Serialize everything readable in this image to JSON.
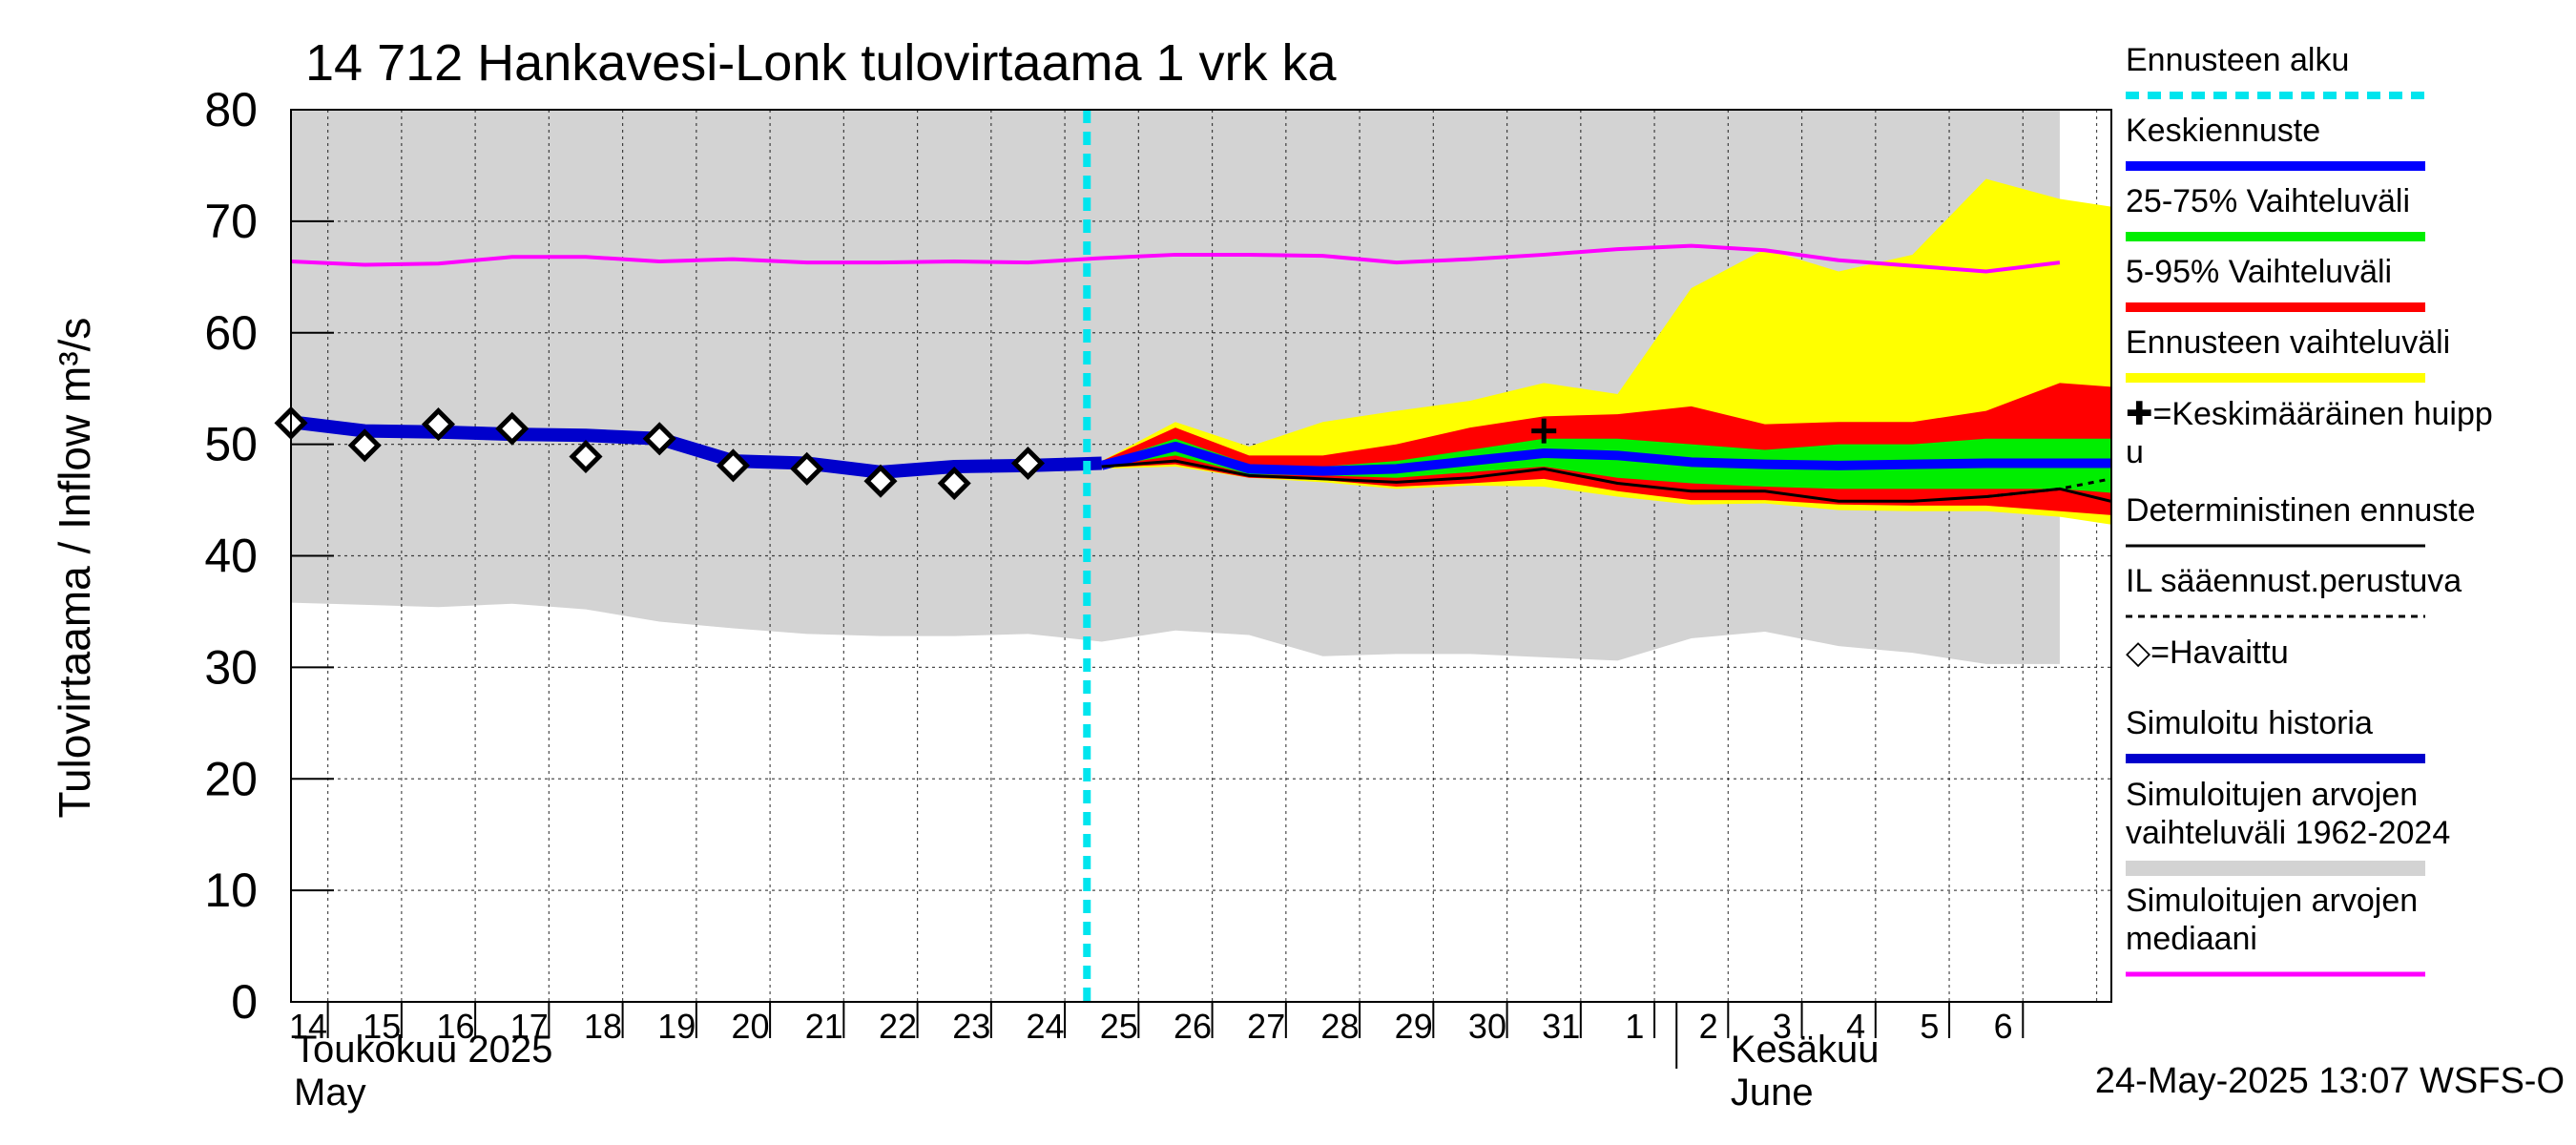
{
  "chart_data": {
    "type": "area",
    "title": "14 712 Hankavesi-Lonk tulovirtaama 1 vrk ka",
    "ylabel": "Tulovirtaama / Inflow    m³/s",
    "ylim": [
      0,
      80
    ],
    "yticks": [
      0,
      10,
      20,
      30,
      40,
      50,
      60,
      70,
      80
    ],
    "grid": true,
    "legend_position": "right",
    "x_day_labels": [
      "14",
      "15",
      "16",
      "17",
      "18",
      "19",
      "20",
      "21",
      "22",
      "23",
      "24",
      "25",
      "26",
      "27",
      "28",
      "29",
      "30",
      "31",
      "1",
      "2",
      "3",
      "4",
      "5",
      "6"
    ],
    "month_labels": {
      "may_fi": "Toukokuu  2025",
      "may_en": "May",
      "june_fi": "Kesäkuu",
      "june_en": "June"
    },
    "forecast_start_day": 23.8,
    "series": {
      "historical_range": {
        "upper": [
          [
            13,
            80
          ],
          [
            37,
            80
          ]
        ],
        "lower": [
          [
            13,
            35.8
          ],
          [
            14,
            35.6
          ],
          [
            15,
            35.4
          ],
          [
            16,
            35.7
          ],
          [
            17,
            35.2
          ],
          [
            18,
            34.1
          ],
          [
            19,
            33.5
          ],
          [
            20,
            33.0
          ],
          [
            21,
            32.8
          ],
          [
            22,
            32.8
          ],
          [
            23,
            33.0
          ],
          [
            24,
            32.3
          ],
          [
            25,
            33.3
          ],
          [
            26,
            32.9
          ],
          [
            27,
            31.0
          ],
          [
            28,
            31.2
          ],
          [
            29,
            31.2
          ],
          [
            30,
            30.9
          ],
          [
            31,
            30.6
          ],
          [
            32,
            32.6
          ],
          [
            33,
            33.2
          ],
          [
            34,
            31.9
          ],
          [
            35,
            31.3
          ],
          [
            36,
            30.3
          ],
          [
            37,
            30.3
          ]
        ]
      },
      "simulated_median": [
        [
          13,
          66.4
        ],
        [
          14,
          66.1
        ],
        [
          15,
          66.2
        ],
        [
          16,
          66.8
        ],
        [
          17,
          66.8
        ],
        [
          18,
          66.4
        ],
        [
          19,
          66.6
        ],
        [
          20,
          66.3
        ],
        [
          21,
          66.3
        ],
        [
          22,
          66.4
        ],
        [
          23,
          66.3
        ],
        [
          24,
          66.7
        ],
        [
          25,
          67.0
        ],
        [
          26,
          67.0
        ],
        [
          27,
          66.9
        ],
        [
          28,
          66.3
        ],
        [
          29,
          66.6
        ],
        [
          30,
          67.0
        ],
        [
          31,
          67.5
        ],
        [
          32,
          67.8
        ],
        [
          33,
          67.4
        ],
        [
          34,
          66.5
        ],
        [
          35,
          66.0
        ],
        [
          36,
          65.5
        ],
        [
          37,
          66.3
        ]
      ],
      "forecast_range": {
        "upper": [
          [
            24,
            48.5
          ],
          [
            25,
            52.0
          ],
          [
            26,
            49.8
          ],
          [
            27,
            52.0
          ],
          [
            28,
            53.0
          ],
          [
            29,
            53.9
          ],
          [
            30,
            55.5
          ],
          [
            31,
            54.5
          ],
          [
            32,
            64.0
          ],
          [
            33,
            67.5
          ],
          [
            34,
            65.5
          ],
          [
            35,
            67.0
          ],
          [
            36,
            73.8
          ],
          [
            37,
            72.0
          ],
          [
            38,
            71.0
          ]
        ],
        "lower": [
          [
            24,
            47.8
          ],
          [
            25,
            48.0
          ],
          [
            26,
            47.0
          ],
          [
            27,
            46.6
          ],
          [
            28,
            46.0
          ],
          [
            29,
            46.3
          ],
          [
            30,
            46.2
          ],
          [
            31,
            45.3
          ],
          [
            32,
            44.6
          ],
          [
            33,
            44.7
          ],
          [
            34,
            44.1
          ],
          [
            35,
            44.0
          ],
          [
            36,
            44.0
          ],
          [
            37,
            43.5
          ],
          [
            38,
            42.5
          ]
        ]
      },
      "p5_95": {
        "upper": [
          [
            24,
            48.5
          ],
          [
            25,
            51.5
          ],
          [
            26,
            49.0
          ],
          [
            27,
            49.0
          ],
          [
            28,
            50.0
          ],
          [
            29,
            51.5
          ],
          [
            30,
            52.5
          ],
          [
            31,
            52.7
          ],
          [
            32,
            53.4
          ],
          [
            33,
            51.8
          ],
          [
            34,
            52.0
          ],
          [
            35,
            52.0
          ],
          [
            36,
            53.0
          ],
          [
            37,
            55.5
          ],
          [
            38,
            55.0
          ]
        ],
        "lower": [
          [
            24,
            47.9
          ],
          [
            25,
            48.2
          ],
          [
            26,
            47.0
          ],
          [
            27,
            46.8
          ],
          [
            28,
            46.2
          ],
          [
            29,
            46.5
          ],
          [
            30,
            46.9
          ],
          [
            31,
            45.8
          ],
          [
            32,
            45.0
          ],
          [
            33,
            45.0
          ],
          [
            34,
            44.6
          ],
          [
            35,
            44.5
          ],
          [
            36,
            44.5
          ],
          [
            37,
            44.0
          ],
          [
            38,
            43.5
          ]
        ]
      },
      "p25_75": {
        "upper": [
          [
            24,
            48.3
          ],
          [
            25,
            50.5
          ],
          [
            26,
            48.2
          ],
          [
            27,
            48.0
          ],
          [
            28,
            48.5
          ],
          [
            29,
            49.5
          ],
          [
            30,
            50.5
          ],
          [
            31,
            50.5
          ],
          [
            32,
            50.0
          ],
          [
            33,
            49.5
          ],
          [
            34,
            50.0
          ],
          [
            35,
            50.0
          ],
          [
            36,
            50.5
          ],
          [
            37,
            50.5
          ],
          [
            38,
            50.5
          ]
        ],
        "lower": [
          [
            24,
            48.0
          ],
          [
            25,
            49.0
          ],
          [
            26,
            47.3
          ],
          [
            27,
            47.2
          ],
          [
            28,
            47.0
          ],
          [
            29,
            47.5
          ],
          [
            30,
            48.0
          ],
          [
            31,
            47.0
          ],
          [
            32,
            46.5
          ],
          [
            33,
            46.2
          ],
          [
            34,
            46.0
          ],
          [
            35,
            46.0
          ],
          [
            36,
            46.0
          ],
          [
            37,
            46.0
          ],
          [
            38,
            45.5
          ]
        ]
      },
      "mean_forecast": [
        [
          24,
          48.1
        ],
        [
          25,
          49.8
        ],
        [
          26,
          47.8
        ],
        [
          27,
          47.6
        ],
        [
          28,
          47.8
        ],
        [
          29,
          48.5
        ],
        [
          30,
          49.2
        ],
        [
          31,
          49.0
        ],
        [
          32,
          48.4
        ],
        [
          33,
          48.2
        ],
        [
          34,
          48.1
        ],
        [
          35,
          48.2
        ],
        [
          36,
          48.3
        ],
        [
          37,
          48.3
        ],
        [
          38,
          48.3
        ]
      ],
      "deterministic": [
        [
          24,
          48.0
        ],
        [
          25,
          48.5
        ],
        [
          26,
          47.2
        ],
        [
          27,
          46.9
        ],
        [
          28,
          46.6
        ],
        [
          29,
          47.0
        ],
        [
          30,
          47.8
        ],
        [
          31,
          46.5
        ],
        [
          32,
          45.8
        ],
        [
          33,
          45.8
        ],
        [
          34,
          44.9
        ],
        [
          35,
          44.9
        ],
        [
          36,
          45.3
        ],
        [
          37,
          46.0
        ],
        [
          38,
          44.4
        ]
      ],
      "il_weather": [
        [
          36,
          45.3
        ],
        [
          37,
          46.0
        ],
        [
          38,
          47.3
        ]
      ],
      "simulated_history": [
        [
          13,
          52.0
        ],
        [
          14,
          51.2
        ],
        [
          15,
          51.1
        ],
        [
          16,
          50.9
        ],
        [
          17,
          50.8
        ],
        [
          18,
          50.5
        ],
        [
          19,
          48.5
        ],
        [
          20,
          48.3
        ],
        [
          21,
          47.5
        ],
        [
          22,
          48.0
        ],
        [
          23,
          48.1
        ],
        [
          24,
          48.3
        ]
      ],
      "observed": [
        [
          13,
          51.9
        ],
        [
          14,
          49.9
        ],
        [
          15,
          51.8
        ],
        [
          16,
          51.4
        ],
        [
          17,
          48.9
        ],
        [
          18,
          50.5
        ],
        [
          19,
          48.1
        ],
        [
          20,
          47.8
        ],
        [
          21,
          46.7
        ],
        [
          22,
          46.5
        ],
        [
          23,
          48.3
        ]
      ],
      "mean_peak": [
        [
          30,
          51.2
        ]
      ]
    },
    "legend": [
      {
        "label": "Ennusteen alku",
        "color": "#00e5ee",
        "style": "dashed"
      },
      {
        "label": "Keskiennuste",
        "color": "#0000ff",
        "style": "line"
      },
      {
        "label": "25-75% Vaihteluväli",
        "color": "#00ee00",
        "style": "line"
      },
      {
        "label": "5-95% Vaihteluväli",
        "color": "#ff0000",
        "style": "line"
      },
      {
        "label": "Ennusteen vaihteluväli",
        "color": "#ffff00",
        "style": "line"
      },
      {
        "label": "✚=Keskimääräinen huipp",
        "label2": "u",
        "color": "#000000",
        "style": "none"
      },
      {
        "label": "Deterministinen ennuste",
        "color": "#000000",
        "style": "thin"
      },
      {
        "label": "IL sääennust.perustuva",
        "color": "#000000",
        "style": "dotted"
      },
      {
        "label": "◇=Havaittu",
        "color": "#000000",
        "style": "none"
      },
      {
        "label": "Simuloitu historia",
        "color": "#0000cc",
        "style": "line"
      },
      {
        "label": "Simuloitujen arvojen",
        "label2": "vaihteluväli 1962-2024",
        "color": "#d3d3d3",
        "style": "line"
      },
      {
        "label": "Simuloitujen arvojen",
        "label2": "mediaani",
        "color": "#ff00ff",
        "style": "line"
      }
    ],
    "colors": {
      "historical_range": "#d3d3d3",
      "median": "#ff00ff",
      "forecast_range": "#ffff00",
      "p5_95": "#ff0000",
      "p25_75": "#00ee00",
      "mean_forecast": "#0000ff",
      "simulated_history": "#0000cc",
      "forecast_start": "#00e5ee"
    },
    "timestamp": "24-May-2025 13:07 WSFS-O"
  }
}
